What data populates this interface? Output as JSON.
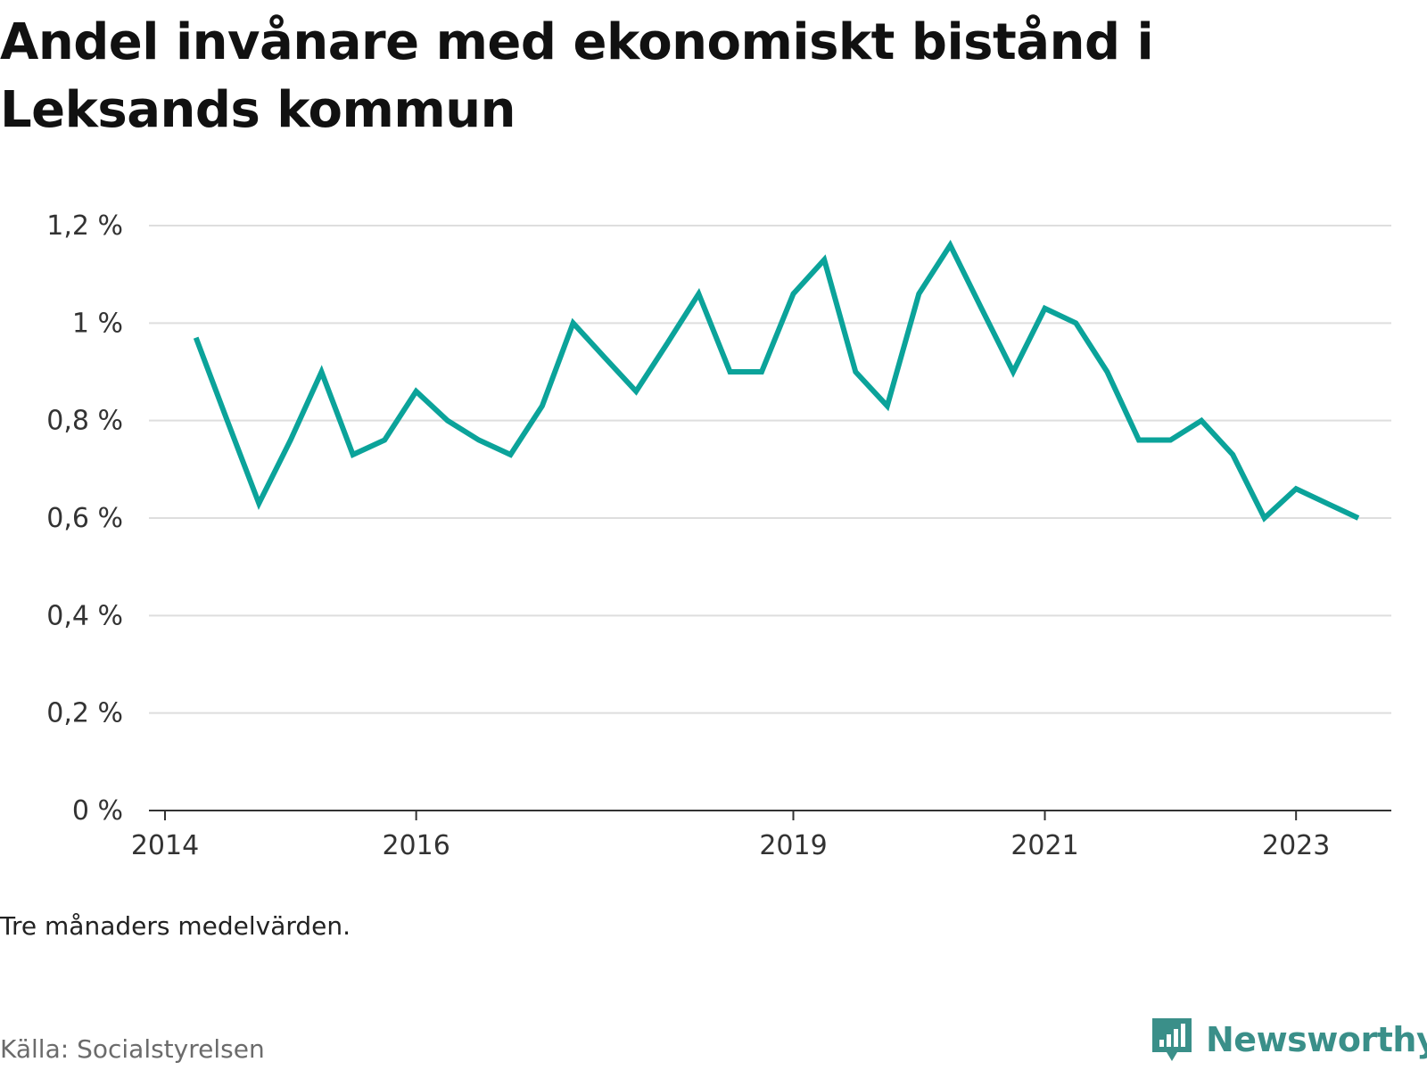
{
  "title": "Andel invånare med ekonomiskt bistånd i Leksands kommun",
  "note": "Tre månaders medelvärden.",
  "source": "Källa: Socialstyrelsen",
  "brand": {
    "name": "Newsworthy",
    "icon": "newsworthy-logo-icon",
    "color": "#3a8f89"
  },
  "colors": {
    "line": "#0ba39a",
    "grid": "#dedede",
    "axis": "#333333",
    "text": "#333333"
  },
  "chart_data": {
    "type": "line",
    "title": "Andel invånare med ekonomiskt bistånd i Leksands kommun",
    "xlabel": "",
    "ylabel": "",
    "ylim": [
      0,
      1.2
    ],
    "yticks": [
      0,
      0.2,
      0.4,
      0.6,
      0.8,
      1.0,
      1.2
    ],
    "ytick_labels": [
      "0 %",
      "0,2 %",
      "0,4 %",
      "0,6 %",
      "0,8 %",
      "1 %",
      "1,2 %"
    ],
    "xlim": [
      "2014-01-01",
      "2024-01-01"
    ],
    "xticks": [
      "2014-01-01",
      "2016-01-01",
      "2019-01-01",
      "2021-01-01",
      "2023-01-01"
    ],
    "xtick_labels": [
      "2014",
      "2016",
      "2019",
      "2021",
      "2023"
    ],
    "grid": true,
    "legend": "none",
    "series": [
      {
        "x": [
          "2014-04-01",
          "2014-07-01",
          "2014-10-01",
          "2015-01-01",
          "2015-04-01",
          "2015-07-01",
          "2015-10-01",
          "2016-01-01",
          "2016-04-01",
          "2016-07-01",
          "2016-10-01",
          "2017-01-01",
          "2017-04-01",
          "2017-07-01",
          "2017-10-01",
          "2018-01-01",
          "2018-04-01",
          "2018-07-01",
          "2018-10-01",
          "2019-01-01",
          "2019-04-01",
          "2019-07-01",
          "2019-10-01",
          "2020-01-01",
          "2020-04-01",
          "2020-07-01",
          "2020-10-01",
          "2021-01-01",
          "2021-04-01",
          "2021-07-01",
          "2021-10-01",
          "2022-01-01",
          "2022-04-01",
          "2022-07-01",
          "2022-10-01",
          "2023-01-01",
          "2023-04-01",
          "2023-07-01"
        ],
        "values": [
          0.97,
          0.8,
          0.63,
          0.76,
          0.9,
          0.73,
          0.76,
          0.86,
          0.8,
          0.76,
          0.73,
          0.83,
          1.0,
          0.93,
          0.86,
          0.96,
          1.06,
          0.9,
          0.9,
          1.06,
          1.13,
          0.9,
          0.83,
          1.06,
          1.16,
          1.03,
          0.9,
          1.03,
          1.0,
          0.9,
          0.76,
          0.76,
          0.8,
          0.73,
          0.6,
          0.66,
          0.63,
          0.6
        ]
      }
    ]
  }
}
